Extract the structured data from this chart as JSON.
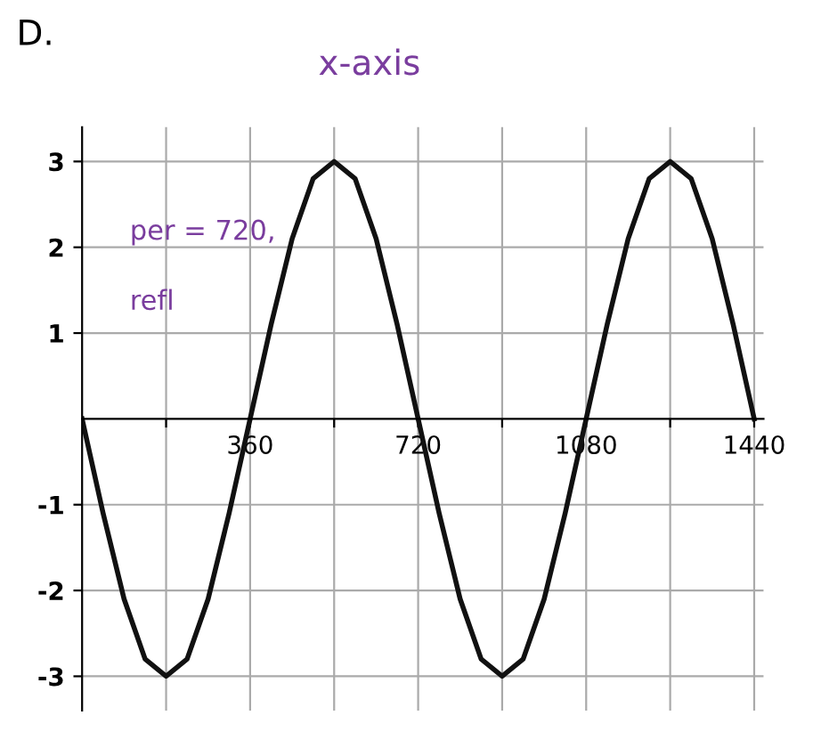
{
  "chart_data": {
    "type": "line",
    "title": "D.",
    "subtitle": "x-axis",
    "x": [
      0,
      45,
      90,
      135,
      180,
      225,
      270,
      315,
      360,
      405,
      450,
      495,
      540,
      585,
      630,
      675,
      720,
      765,
      810,
      855,
      900,
      945,
      990,
      1035,
      1080,
      1125,
      1170,
      1215,
      1260,
      1305,
      1350,
      1395,
      1440
    ],
    "series": [
      {
        "color": "#111111",
        "values": [
          0,
          -1.1,
          -2.1,
          -2.8,
          -3,
          -2.8,
          -2.1,
          -1.1,
          0,
          1.1,
          2.1,
          2.8,
          3,
          2.8,
          2.1,
          1.1,
          0,
          -1.1,
          -2.1,
          -2.8,
          -3,
          -2.8,
          -2.1,
          -1.1,
          0,
          1.1,
          2.1,
          2.8,
          3,
          2.8,
          2.1,
          1.1,
          0
        ]
      }
    ],
    "xlim": [
      0,
      1460
    ],
    "ylim": [
      -3.4,
      3.4
    ],
    "xticks": [
      {
        "value": 180,
        "label": null
      },
      360,
      {
        "value": 540,
        "label": null
      },
      720,
      {
        "value": 900,
        "label": null
      },
      1080,
      {
        "value": 1260,
        "label": null
      },
      1440
    ],
    "yticks": [
      -3,
      -2,
      -1,
      1,
      2,
      3
    ],
    "grid": true,
    "marker": "none",
    "line_style": "solid",
    "annotations": [
      "per = 720,",
      "refl"
    ]
  }
}
